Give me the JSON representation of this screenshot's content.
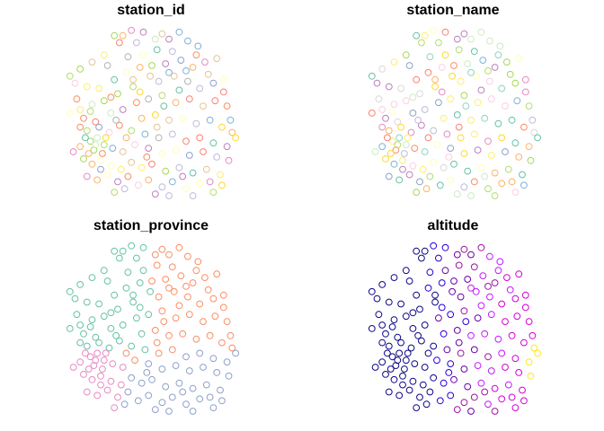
{
  "chart_data": [
    {
      "type": "scatter",
      "title": "station_id",
      "coloring": "categorical (one colour per station)",
      "palette": [
        "#66c2a5",
        "#fc8d62",
        "#8da0cb",
        "#e78ac3",
        "#a6d854",
        "#ffd92f",
        "#e5c494",
        "#b3b3b3",
        "#fb8072",
        "#80b1d3",
        "#bebada",
        "#ffffb3",
        "#fccde5",
        "#bc80bd",
        "#ccebc5",
        "#ffed6f",
        "#fdb462",
        "#b3de69"
      ]
    },
    {
      "type": "scatter",
      "title": "station_name",
      "coloring": "categorical (one colour per station)",
      "palette": [
        "#ffffb3",
        "#fb8072",
        "#80b1d3",
        "#8dd3c7",
        "#bebada",
        "#fdb462",
        "#b3de69",
        "#fccde5",
        "#d9d9d9",
        "#bc80bd",
        "#ccebc5",
        "#ffed6f",
        "#e78ac3",
        "#a6d854",
        "#ffd92f",
        "#fc8d62",
        "#66c2a5",
        "#8da0cb"
      ]
    },
    {
      "type": "scatter",
      "title": "station_province",
      "coloring": "categorical (one colour per province)",
      "palette": [
        "#66c2a5",
        "#fc8d62",
        "#8da0cb",
        "#e78ac3"
      ]
    },
    {
      "type": "scatter",
      "title": "altitude",
      "coloring": "continuous colour ramp",
      "palette": [
        "#0d0887",
        "#2a00d5",
        "#6a00a8",
        "#9c179e",
        "#c219ff",
        "#d400d4",
        "#fde725",
        "#f0f921"
      ]
    }
  ]
}
